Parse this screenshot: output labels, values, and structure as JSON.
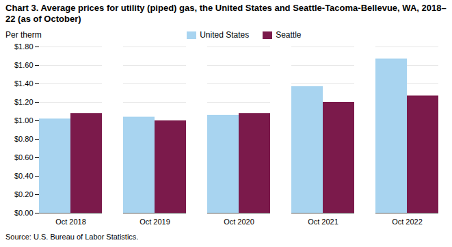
{
  "chart_data": {
    "type": "bar",
    "title": "Chart 3. Average prices for utility (piped) gas, the United States and Seattle-Tacoma-Bellevue, WA, 2018–22 (as of October)",
    "ylabel": "Per therm",
    "source": "Source: U.S. Bureau of Labor Statistics.",
    "categories": [
      "Oct 2018",
      "Oct 2019",
      "Oct 2020",
      "Oct 2021",
      "Oct 2022"
    ],
    "series": [
      {
        "name": "United States",
        "color": "#a8d4f0",
        "values": [
          1.02,
          1.04,
          1.06,
          1.37,
          1.67
        ]
      },
      {
        "name": "Seattle",
        "color": "#7b1a4b",
        "values": [
          1.08,
          1.0,
          1.08,
          1.2,
          1.27
        ]
      }
    ],
    "ylim": [
      0,
      1.8
    ],
    "yticks": [
      {
        "value": 0.0,
        "label": "$0.00"
      },
      {
        "value": 0.2,
        "label": "$0.20"
      },
      {
        "value": 0.4,
        "label": "$0.40"
      },
      {
        "value": 0.6,
        "label": "$0.60"
      },
      {
        "value": 0.8,
        "label": "$0.80"
      },
      {
        "value": 1.0,
        "label": "$1.00"
      },
      {
        "value": 1.2,
        "label": "$1.20"
      },
      {
        "value": 1.4,
        "label": "$1.40"
      },
      {
        "value": 1.6,
        "label": "$1.60"
      },
      {
        "value": 1.8,
        "label": "$1.80"
      }
    ],
    "grid": true,
    "legend": "top"
  }
}
